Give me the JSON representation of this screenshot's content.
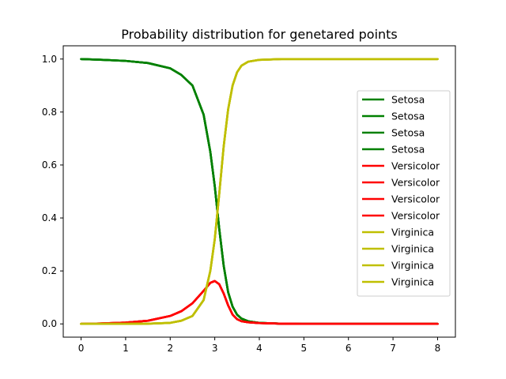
{
  "chart_data": {
    "type": "line",
    "title": "Probability distribution for genetared points",
    "xlabel": "",
    "ylabel": "",
    "xlim": [
      -0.4,
      8.4
    ],
    "ylim": [
      -0.05,
      1.05
    ],
    "xticks": [
      0,
      1,
      2,
      3,
      4,
      5,
      6,
      7,
      8
    ],
    "yticks": [
      0.0,
      0.2,
      0.4,
      0.6,
      0.8,
      1.0
    ],
    "ytick_labels": [
      "0.0",
      "0.2",
      "0.4",
      "0.6",
      "0.8",
      "1.0"
    ],
    "grid": false,
    "legend_position": "center-right",
    "x": [
      0,
      0.5,
      1,
      1.5,
      2,
      2.25,
      2.5,
      2.75,
      2.9,
      3.0,
      3.1,
      3.2,
      3.3,
      3.4,
      3.5,
      3.6,
      3.75,
      4.0,
      4.5,
      5,
      6,
      7,
      8
    ],
    "series": [
      {
        "name": "Setosa",
        "color": "#008000",
        "values": [
          1.0,
          0.997,
          0.993,
          0.985,
          0.965,
          0.94,
          0.9,
          0.79,
          0.65,
          0.52,
          0.36,
          0.22,
          0.12,
          0.065,
          0.035,
          0.02,
          0.01,
          0.004,
          0.001,
          0.0,
          0.0,
          0.0,
          0.0
        ]
      },
      {
        "name": "Setosa",
        "color": "#008000",
        "values": [
          1.0,
          0.997,
          0.993,
          0.985,
          0.965,
          0.94,
          0.9,
          0.79,
          0.65,
          0.52,
          0.36,
          0.22,
          0.12,
          0.065,
          0.035,
          0.02,
          0.01,
          0.004,
          0.001,
          0.0,
          0.0,
          0.0,
          0.0
        ]
      },
      {
        "name": "Setosa",
        "color": "#008000",
        "values": [
          1.0,
          0.997,
          0.993,
          0.985,
          0.965,
          0.94,
          0.9,
          0.79,
          0.65,
          0.52,
          0.36,
          0.22,
          0.12,
          0.065,
          0.035,
          0.02,
          0.01,
          0.004,
          0.001,
          0.0,
          0.0,
          0.0,
          0.0
        ]
      },
      {
        "name": "Setosa",
        "color": "#008000",
        "values": [
          1.0,
          0.997,
          0.993,
          0.985,
          0.965,
          0.94,
          0.9,
          0.79,
          0.65,
          0.52,
          0.36,
          0.22,
          0.12,
          0.065,
          0.035,
          0.02,
          0.01,
          0.004,
          0.001,
          0.0,
          0.0,
          0.0,
          0.0
        ]
      },
      {
        "name": "Versicolor",
        "color": "#ff0000",
        "values": [
          0.0,
          0.002,
          0.005,
          0.012,
          0.03,
          0.048,
          0.078,
          0.125,
          0.155,
          0.162,
          0.15,
          0.115,
          0.07,
          0.035,
          0.018,
          0.01,
          0.006,
          0.003,
          0.001,
          0.0,
          0.0,
          0.0,
          0.0
        ]
      },
      {
        "name": "Versicolor",
        "color": "#ff0000",
        "values": [
          0.0,
          0.002,
          0.005,
          0.012,
          0.03,
          0.048,
          0.078,
          0.125,
          0.155,
          0.162,
          0.15,
          0.115,
          0.07,
          0.035,
          0.018,
          0.01,
          0.006,
          0.003,
          0.001,
          0.0,
          0.0,
          0.0,
          0.0
        ]
      },
      {
        "name": "Versicolor",
        "color": "#ff0000",
        "values": [
          0.0,
          0.002,
          0.005,
          0.012,
          0.03,
          0.048,
          0.078,
          0.125,
          0.155,
          0.162,
          0.15,
          0.115,
          0.07,
          0.035,
          0.018,
          0.01,
          0.006,
          0.003,
          0.001,
          0.0,
          0.0,
          0.0,
          0.0
        ]
      },
      {
        "name": "Versicolor",
        "color": "#ff0000",
        "values": [
          0.0,
          0.002,
          0.005,
          0.012,
          0.03,
          0.048,
          0.078,
          0.125,
          0.155,
          0.162,
          0.15,
          0.115,
          0.07,
          0.035,
          0.018,
          0.01,
          0.006,
          0.003,
          0.001,
          0.0,
          0.0,
          0.0,
          0.0
        ]
      },
      {
        "name": "Virginica",
        "color": "#bfbf00",
        "values": [
          0.0,
          0.0,
          0.0,
          0.001,
          0.004,
          0.012,
          0.03,
          0.09,
          0.2,
          0.32,
          0.49,
          0.67,
          0.81,
          0.9,
          0.95,
          0.975,
          0.99,
          0.997,
          1.0,
          1.0,
          1.0,
          1.0,
          1.0
        ]
      },
      {
        "name": "Virginica",
        "color": "#bfbf00",
        "values": [
          0.0,
          0.0,
          0.0,
          0.001,
          0.004,
          0.012,
          0.03,
          0.09,
          0.2,
          0.32,
          0.49,
          0.67,
          0.81,
          0.9,
          0.95,
          0.975,
          0.99,
          0.997,
          1.0,
          1.0,
          1.0,
          1.0,
          1.0
        ]
      },
      {
        "name": "Virginica",
        "color": "#bfbf00",
        "values": [
          0.0,
          0.0,
          0.0,
          0.001,
          0.004,
          0.012,
          0.03,
          0.09,
          0.2,
          0.32,
          0.49,
          0.67,
          0.81,
          0.9,
          0.95,
          0.975,
          0.99,
          0.997,
          1.0,
          1.0,
          1.0,
          1.0,
          1.0
        ]
      },
      {
        "name": "Virginica",
        "color": "#bfbf00",
        "values": [
          0.0,
          0.0,
          0.0,
          0.001,
          0.004,
          0.012,
          0.03,
          0.09,
          0.2,
          0.32,
          0.49,
          0.67,
          0.81,
          0.9,
          0.95,
          0.975,
          0.99,
          0.997,
          1.0,
          1.0,
          1.0,
          1.0,
          1.0
        ]
      }
    ]
  }
}
